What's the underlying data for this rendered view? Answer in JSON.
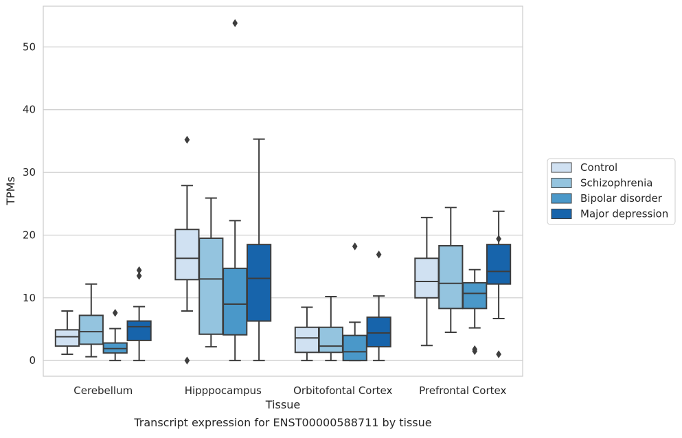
{
  "chart_data": {
    "type": "box",
    "title": "",
    "caption": "Transcript expression for ENST00000588711 by tissue",
    "xlabel": "Tissue",
    "ylabel": "TPMs",
    "ylim": [
      -2.5,
      56.5
    ],
    "yticks": [
      0,
      10,
      20,
      30,
      40,
      50
    ],
    "grid": "horizontal",
    "legend_position": "right",
    "categories": [
      "Cerebellum",
      "Hipppocampus",
      "Orbitofontal Cortex",
      "Prefrontal Cortex"
    ],
    "series": [
      {
        "name": "Control",
        "color": "#d0e1f2",
        "boxes": [
          {
            "whislo": 1.0,
            "q1": 2.3,
            "med": 3.8,
            "q3": 4.9,
            "whishi": 7.9,
            "fliers": []
          },
          {
            "whislo": 7.9,
            "q1": 12.9,
            "med": 16.3,
            "q3": 20.9,
            "whishi": 27.9,
            "fliers": [
              35.2,
              0.0
            ]
          },
          {
            "whislo": 0.0,
            "q1": 1.3,
            "med": 3.6,
            "q3": 5.3,
            "whishi": 8.5,
            "fliers": []
          },
          {
            "whislo": 2.4,
            "q1": 10.0,
            "med": 12.6,
            "q3": 16.3,
            "whishi": 22.8,
            "fliers": []
          }
        ]
      },
      {
        "name": "Schizophrenia",
        "color": "#94c4df",
        "boxes": [
          {
            "whislo": 0.6,
            "q1": 2.6,
            "med": 4.6,
            "q3": 7.2,
            "whishi": 12.2,
            "fliers": []
          },
          {
            "whislo": 2.2,
            "q1": 4.2,
            "med": 13.0,
            "q3": 19.5,
            "whishi": 25.9,
            "fliers": []
          },
          {
            "whislo": 0.0,
            "q1": 1.3,
            "med": 2.3,
            "q3": 5.3,
            "whishi": 10.2,
            "fliers": []
          },
          {
            "whislo": 4.5,
            "q1": 8.3,
            "med": 12.3,
            "q3": 18.3,
            "whishi": 24.4,
            "fliers": []
          }
        ]
      },
      {
        "name": "Bipolar disorder",
        "color": "#4a98c9",
        "boxes": [
          {
            "whislo": 0.0,
            "q1": 1.2,
            "med": 1.9,
            "q3": 2.8,
            "whishi": 5.1,
            "fliers": [
              7.6
            ]
          },
          {
            "whislo": 0.0,
            "q1": 4.1,
            "med": 9.0,
            "q3": 14.7,
            "whishi": 22.3,
            "fliers": [
              53.8
            ]
          },
          {
            "whislo": 0.0,
            "q1": 0.0,
            "med": 1.4,
            "q3": 4.0,
            "whishi": 6.1,
            "fliers": [
              18.2
            ]
          },
          {
            "whislo": 5.2,
            "q1": 8.3,
            "med": 10.7,
            "q3": 12.4,
            "whishi": 14.5,
            "fliers": [
              1.8,
              1.5
            ]
          }
        ]
      },
      {
        "name": "Major depression",
        "color": "#1764ab",
        "boxes": [
          {
            "whislo": 0.0,
            "q1": 3.2,
            "med": 5.4,
            "q3": 6.3,
            "whishi": 8.6,
            "fliers": [
              14.4,
              13.5
            ]
          },
          {
            "whislo": 0.0,
            "q1": 6.3,
            "med": 13.1,
            "q3": 18.5,
            "whishi": 35.3,
            "fliers": []
          },
          {
            "whislo": 0.0,
            "q1": 2.2,
            "med": 4.4,
            "q3": 6.9,
            "whishi": 10.3,
            "fliers": [
              16.9
            ]
          },
          {
            "whislo": 6.7,
            "q1": 12.2,
            "med": 14.2,
            "q3": 18.5,
            "whishi": 23.8,
            "fliers": [
              19.4,
              1.0
            ]
          }
        ]
      }
    ]
  }
}
